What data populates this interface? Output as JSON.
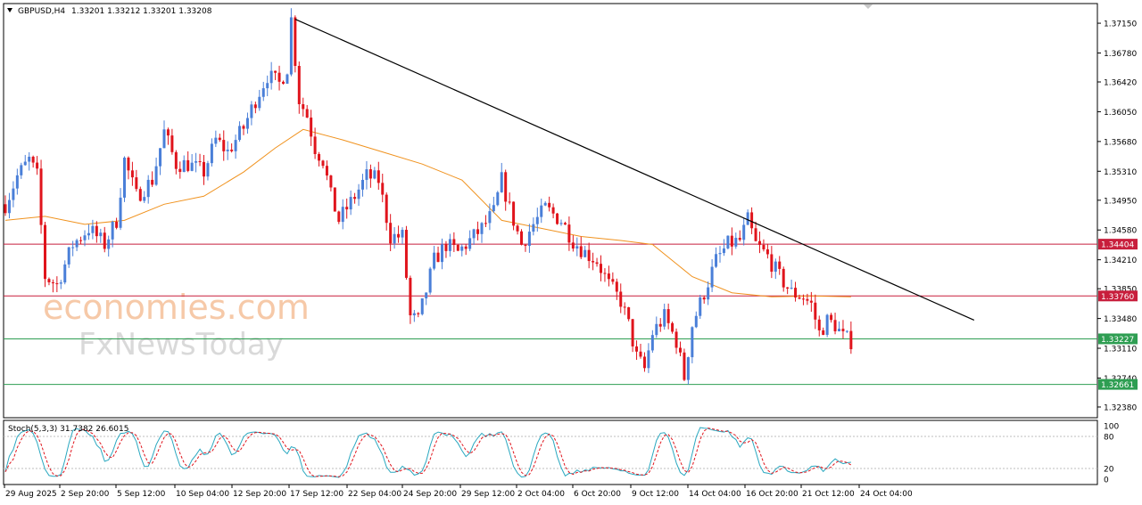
{
  "header": {
    "symbol": "GBPUSD,H4",
    "ohlc": "1.33201 1.33212 1.33201 1.33208"
  },
  "watermark": {
    "line1": "economies.com",
    "line2": "FxNewsToday"
  },
  "stoch": {
    "label": "Stoch(5,3,3) 31.7382 26.6015",
    "levels": [
      "100",
      "80",
      "20",
      "0"
    ]
  },
  "colors": {
    "up": "#4a7fd8",
    "down": "#e0141c",
    "ma": "#f0921e",
    "trendline": "#000000",
    "resistance": "#c81e3c",
    "support": "#2e9e52",
    "stoch_main": "#2aa8c0",
    "stoch_signal": "#e0141c"
  },
  "chart_data": {
    "type": "candlestick",
    "symbol": "GBPUSD",
    "timeframe": "H4",
    "price_axis": {
      "ylim": [
        1.3228,
        1.3735
      ],
      "ticks": [
        "1.37150",
        "1.36780",
        "1.36420",
        "1.36050",
        "1.35680",
        "1.35310",
        "1.34950",
        "1.34580",
        "1.34210",
        "1.33850",
        "1.33480",
        "1.33110",
        "1.32740",
        "1.32380"
      ]
    },
    "time_axis": {
      "ticks": [
        "29 Aug 2025",
        "2 Sep 20:00",
        "5 Sep 12:00",
        "10 Sep 04:00",
        "12 Sep 20:00",
        "17 Sep 12:00",
        "22 Sep 04:00",
        "24 Sep 20:00",
        "29 Sep 12:00",
        "2 Oct 04:00",
        "6 Oct 20:00",
        "9 Oct 12:00",
        "14 Oct 04:00",
        "16 Oct 20:00",
        "21 Oct 12:00",
        "24 Oct 04:00"
      ]
    },
    "price_path": [
      [
        0,
        1.349
      ],
      [
        3,
        1.3525
      ],
      [
        6,
        1.3545
      ],
      [
        8,
        1.3525
      ],
      [
        10,
        1.34
      ],
      [
        13,
        1.339
      ],
      [
        17,
        1.344
      ],
      [
        21,
        1.346
      ],
      [
        25,
        1.344
      ],
      [
        28,
        1.347
      ],
      [
        30,
        1.3545
      ],
      [
        33,
        1.35
      ],
      [
        37,
        1.352
      ],
      [
        40,
        1.358
      ],
      [
        43,
        1.354
      ],
      [
        46,
        1.354
      ],
      [
        50,
        1.353
      ],
      [
        53,
        1.357
      ],
      [
        56,
        1.3555
      ],
      [
        60,
        1.3585
      ],
      [
        63,
        1.362
      ],
      [
        66,
        1.365
      ],
      [
        69,
        1.364
      ],
      [
        71,
        1.366
      ],
      [
        72,
        1.372
      ],
      [
        74,
        1.362
      ],
      [
        76,
        1.36
      ],
      [
        78,
        1.356
      ],
      [
        80,
        1.3545
      ],
      [
        82,
        1.35
      ],
      [
        84,
        1.347
      ],
      [
        88,
        1.35
      ],
      [
        91,
        1.3525
      ],
      [
        94,
        1.352
      ],
      [
        97,
        1.345
      ],
      [
        100,
        1.345
      ],
      [
        102,
        1.335
      ],
      [
        104,
        1.3345
      ],
      [
        108,
        1.342
      ],
      [
        111,
        1.344
      ],
      [
        114,
        1.343
      ],
      [
        117,
        1.3445
      ],
      [
        120,
        1.346
      ],
      [
        123,
        1.348
      ],
      [
        125,
        1.352
      ],
      [
        127,
        1.3485
      ],
      [
        130,
        1.344
      ],
      [
        133,
        1.3465
      ],
      [
        136,
        1.3485
      ],
      [
        140,
        1.347
      ],
      [
        143,
        1.3445
      ],
      [
        146,
        1.343
      ],
      [
        149,
        1.342
      ],
      [
        152,
        1.339
      ],
      [
        155,
        1.337
      ],
      [
        157,
        1.334
      ],
      [
        159,
        1.33
      ],
      [
        161,
        1.3285
      ],
      [
        163,
        1.333
      ],
      [
        166,
        1.335
      ],
      [
        169,
        1.332
      ],
      [
        171,
        1.3275
      ],
      [
        173,
        1.334
      ],
      [
        176,
        1.338
      ],
      [
        179,
        1.342
      ],
      [
        182,
        1.344
      ],
      [
        185,
        1.3445
      ],
      [
        187,
        1.347
      ],
      [
        189,
        1.344
      ],
      [
        192,
        1.3425
      ],
      [
        195,
        1.34
      ],
      [
        198,
        1.338
      ],
      [
        201,
        1.3375
      ],
      [
        203,
        1.3365
      ],
      [
        205,
        1.333
      ],
      [
        207,
        1.3345
      ],
      [
        209,
        1.334
      ],
      [
        211,
        1.3325
      ],
      [
        213,
        1.332
      ]
    ],
    "moving_average": {
      "name": "",
      "points": [
        [
          0,
          1.347
        ],
        [
          10,
          1.3475
        ],
        [
          20,
          1.3465
        ],
        [
          30,
          1.347
        ],
        [
          40,
          1.349
        ],
        [
          50,
          1.35
        ],
        [
          60,
          1.353
        ],
        [
          68,
          1.356
        ],
        [
          75,
          1.3583
        ],
        [
          85,
          1.357
        ],
        [
          95,
          1.3555
        ],
        [
          105,
          1.354
        ],
        [
          115,
          1.352
        ],
        [
          125,
          1.347
        ],
        [
          135,
          1.346
        ],
        [
          145,
          1.345
        ],
        [
          155,
          1.3445
        ],
        [
          163,
          1.344
        ],
        [
          173,
          1.34
        ],
        [
          183,
          1.338
        ],
        [
          193,
          1.3375
        ],
        [
          203,
          1.3376
        ],
        [
          213,
          1.3375
        ]
      ]
    },
    "trendline": {
      "from": [
        73,
        1.372
      ],
      "to": [
        244,
        1.3346
      ]
    },
    "horizontal_levels": [
      {
        "label": "1.34404",
        "value": 1.34404,
        "kind": "resistance"
      },
      {
        "label": "1.33760",
        "value": 1.3376,
        "kind": "resistance"
      },
      {
        "label": "1.33227",
        "value": 1.33227,
        "kind": "support"
      },
      {
        "label": "1.32661",
        "value": 1.32661,
        "kind": "support"
      }
    ],
    "bar_count": 214,
    "stochastic": {
      "main": 31.7382,
      "signal": 26.6015,
      "ylim": [
        0,
        100
      ],
      "levels": [
        80,
        20
      ]
    }
  }
}
